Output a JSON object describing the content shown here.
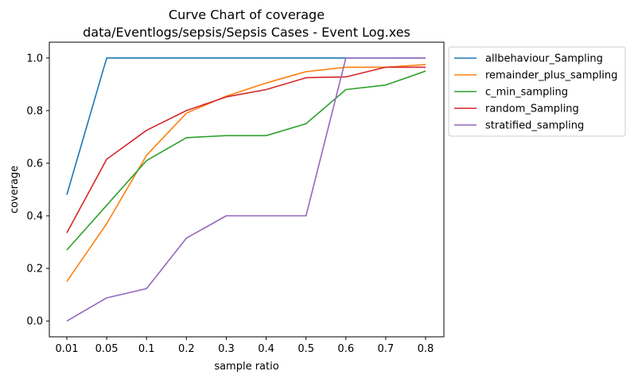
{
  "chart_data": {
    "type": "line",
    "title": "Curve Chart of coverage",
    "subtitle": "data/Eventlogs/sepsis/Sepsis Cases - Event Log.xes",
    "xlabel": "sample ratio",
    "ylabel": "coverage",
    "categories": [
      "0.01",
      "0.05",
      "0.1",
      "0.2",
      "0.3",
      "0.4",
      "0.5",
      "0.6",
      "0.7",
      "0.8"
    ],
    "yticks": [
      "0.0",
      "0.2",
      "0.4",
      "0.6",
      "0.8",
      "1.0"
    ],
    "ylim": [
      -0.06,
      1.06
    ],
    "grid": false,
    "legend_position": "outside-top-right",
    "series": [
      {
        "name": "allbehaviour_Sampling",
        "color": "#1f77b4",
        "values": [
          0.48,
          1.0,
          1.0,
          1.0,
          1.0,
          1.0,
          1.0,
          1.0,
          1.0,
          1.0
        ]
      },
      {
        "name": "remainder_plus_sampling",
        "color": "#ff7f0e",
        "values": [
          0.15,
          0.37,
          0.63,
          0.79,
          0.855,
          0.905,
          0.948,
          0.965,
          0.965,
          0.975
        ]
      },
      {
        "name": "c_min_sampling",
        "color": "#2ca02c",
        "values": [
          0.27,
          0.44,
          0.61,
          0.697,
          0.705,
          0.705,
          0.75,
          0.88,
          0.897,
          0.95
        ]
      },
      {
        "name": "random_Sampling",
        "color": "#d62728",
        "values": [
          0.335,
          0.615,
          0.725,
          0.8,
          0.852,
          0.88,
          0.925,
          0.928,
          0.965,
          0.965
        ]
      },
      {
        "name": "stratified_sampling",
        "color": "#9467bd",
        "values": [
          0.0,
          0.088,
          0.123,
          0.315,
          0.4,
          0.4,
          0.4,
          1.0,
          1.0,
          1.0
        ]
      }
    ]
  }
}
